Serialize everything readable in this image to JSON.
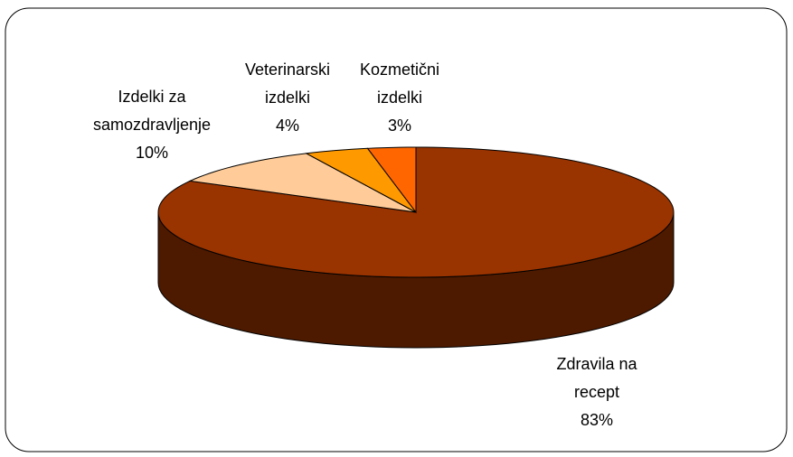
{
  "chart_data": {
    "type": "pie",
    "categories": [
      "Zdravila na recept",
      "Izdelki za samozdravljenje",
      "Veterinarski izdelki",
      "Kozmetični izdelki"
    ],
    "values": [
      83,
      10,
      4,
      3
    ],
    "value_labels": [
      "83%",
      "10%",
      "4%",
      "3%"
    ],
    "colors": [
      "#993300",
      "#FFCC99",
      "#FF9900",
      "#FF6600"
    ]
  }
}
